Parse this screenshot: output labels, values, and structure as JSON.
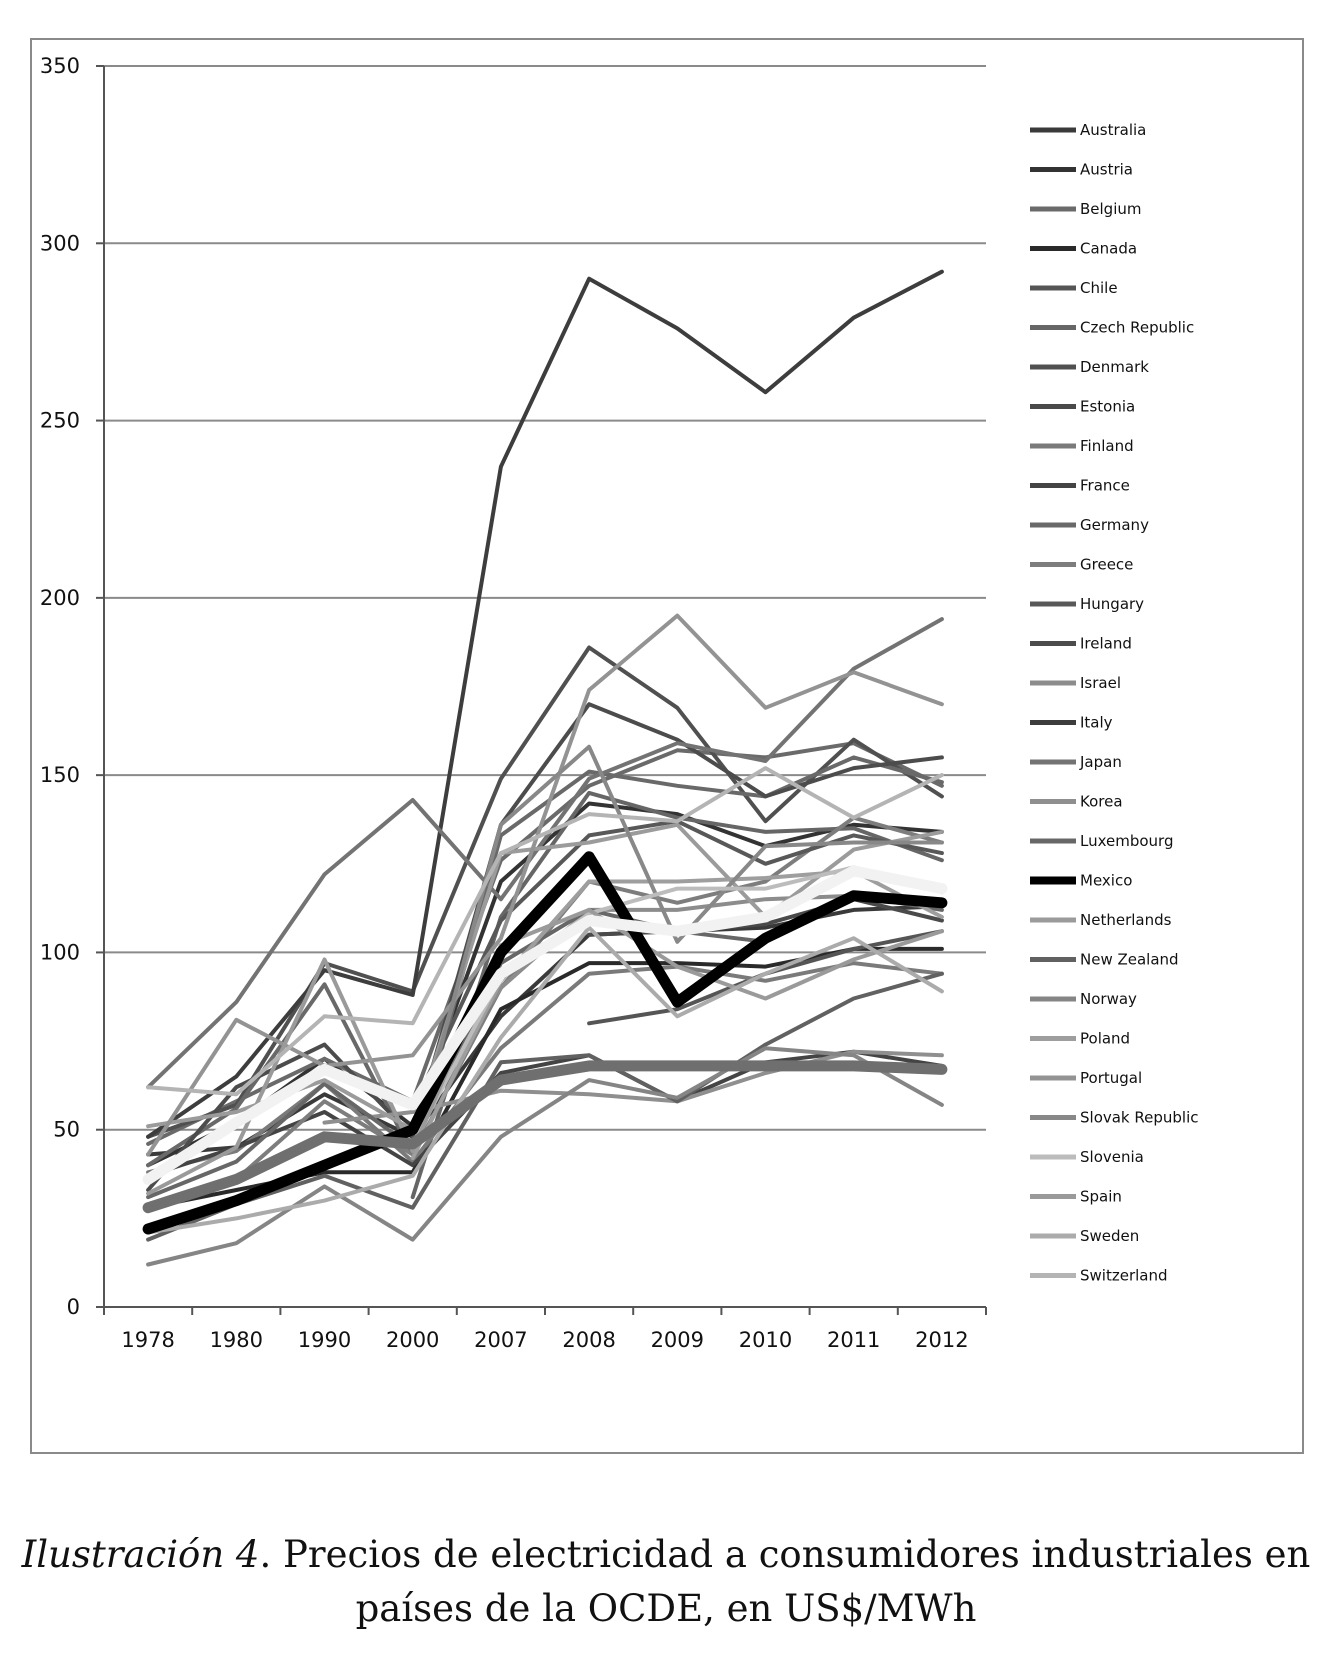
{
  "caption": {
    "label": "Ilustración 4",
    "text": ". Precios de electricidad a consumidores industriales en países de la OCDE, en US$/MWh"
  },
  "chart_data": {
    "type": "line",
    "title": "",
    "xlabel": "",
    "ylabel": "",
    "categories": [
      "1978",
      "1980",
      "1990",
      "2000",
      "2007",
      "2008",
      "2009",
      "2010",
      "2011",
      "2012"
    ],
    "ylim": [
      0,
      350
    ],
    "yticks": [
      0,
      50,
      100,
      150,
      200,
      250,
      300,
      350
    ],
    "grid": "horizontal",
    "legend_position": "right",
    "series": [
      {
        "name": "Australia",
        "color": "#3a3a3a",
        "values": [
          43,
          45,
          60,
          48,
          82,
          105,
          106,
          107,
          112,
          113
        ]
      },
      {
        "name": "Austria",
        "color": "#333333",
        "values": [
          40,
          52,
          70,
          51,
          120,
          142,
          139,
          130,
          136,
          134
        ]
      },
      {
        "name": "Belgium",
        "color": "#6a6a6a",
        "values": [
          46,
          58,
          70,
          58,
          126,
          147,
          157,
          155,
          159,
          147
        ]
      },
      {
        "name": "Canada",
        "color": "#2a2a2a",
        "values": [
          28,
          33,
          38,
          38,
          84,
          97,
          97,
          96,
          101,
          101
        ]
      },
      {
        "name": "Chile",
        "color": "#555555",
        "values": [
          null,
          null,
          null,
          null,
          null,
          80,
          84,
          94,
          101,
          106
        ]
      },
      {
        "name": "Czech Republic",
        "color": "#666666",
        "values": [
          null,
          null,
          null,
          31,
          110,
          145,
          138,
          134,
          135,
          126
        ]
      },
      {
        "name": "Denmark",
        "color": "#505050",
        "values": [
          48,
          57,
          97,
          89,
          149,
          186,
          169,
          137,
          160,
          144
        ]
      },
      {
        "name": "Estonia",
        "color": "#4a4a4a",
        "values": [
          null,
          null,
          null,
          null,
          null,
          105,
          106,
          108,
          115,
          109
        ]
      },
      {
        "name": "Finland",
        "color": "#7a7a7a",
        "values": [
          38,
          44,
          63,
          41,
          73,
          94,
          96,
          92,
          97,
          94
        ]
      },
      {
        "name": "France",
        "color": "#444444",
        "values": [
          37,
          45,
          55,
          40,
          66,
          71,
          58,
          69,
          72,
          68
        ]
      },
      {
        "name": "Germany",
        "color": "#696969",
        "values": [
          40,
          56,
          91,
          43,
          133,
          151,
          147,
          144,
          155,
          148
        ]
      },
      {
        "name": "Greece",
        "color": "#7d7d7d",
        "values": [
          null,
          36,
          58,
          43,
          90,
          120,
          114,
          120,
          138,
          131
        ]
      },
      {
        "name": "Hungary",
        "color": "#585858",
        "values": [
          null,
          null,
          null,
          56,
          109,
          133,
          137,
          125,
          133,
          128
        ]
      },
      {
        "name": "Ireland",
        "color": "#4c4c4c",
        "values": [
          33,
          62,
          74,
          48,
          136,
          170,
          160,
          144,
          152,
          155
        ]
      },
      {
        "name": "Israel",
        "color": "#8c8c8c",
        "values": [
          null,
          null,
          null,
          52,
          90,
          112,
          112,
          115,
          116,
          113
        ]
      },
      {
        "name": "Italy",
        "color": "#3d3d3d",
        "values": [
          48,
          65,
          95,
          88,
          237,
          290,
          276,
          258,
          279,
          292
        ]
      },
      {
        "name": "Japan",
        "color": "#737373",
        "values": [
          62,
          86,
          122,
          143,
          115,
          149,
          159,
          154,
          180,
          194
        ]
      },
      {
        "name": "Korea",
        "color": "#8f8f8f",
        "values": [
          null,
          null,
          52,
          55,
          61,
          60,
          58,
          66,
          72,
          71
        ]
      },
      {
        "name": "Luxembourg",
        "color": "#676767",
        "values": [
          31,
          41,
          63,
          45,
          97,
          112,
          106,
          103,
          116,
          112
        ]
      },
      {
        "name": "Mexico",
        "color": "#000000",
        "bold": true,
        "values": [
          22,
          30,
          40,
          50,
          100,
          127,
          86,
          104,
          116,
          114
        ]
      },
      {
        "name": "Netherlands",
        "color": "#9b9b9b",
        "values": [
          51,
          55,
          64,
          50,
          128,
          131,
          136,
          110,
          129,
          134
        ]
      },
      {
        "name": "New Zealand",
        "color": "#616161",
        "values": [
          19,
          29,
          37,
          28,
          69,
          71,
          58,
          74,
          87,
          94
        ]
      },
      {
        "name": "Norway",
        "color": "#858585",
        "values": [
          12,
          18,
          34,
          19,
          48,
          64,
          59,
          73,
          71,
          57
        ]
      },
      {
        "name": "Poland",
        "color": "#9e9e9e",
        "values": [
          null,
          null,
          null,
          42,
          92,
          120,
          120,
          121,
          123,
          110
        ]
      },
      {
        "name": "Portugal",
        "color": "#939393",
        "values": [
          43,
          81,
          68,
          71,
          104,
          174,
          195,
          169,
          179,
          170
        ]
      },
      {
        "name": "Slovak Republic",
        "color": "#888888",
        "values": [
          null,
          null,
          null,
          44,
          136,
          158,
          103,
          130,
          131,
          131
        ]
      },
      {
        "name": "Slovenia",
        "color": "#bcbcbc",
        "values": [
          null,
          null,
          null,
          46,
          93,
          111,
          118,
          118,
          124,
          117
        ]
      },
      {
        "name": "Spain",
        "color": "#9a9a9a",
        "values": [
          32,
          45,
          98,
          44,
          102,
          112,
          96,
          87,
          98,
          106
        ]
      },
      {
        "name": "Sweden",
        "color": "#ababab",
        "values": [
          21,
          25,
          30,
          37,
          76,
          107,
          82,
          94,
          104,
          89
        ]
      },
      {
        "name": "Switzerland",
        "color": "#b4b4b4",
        "values": [
          62,
          60,
          82,
          80,
          128,
          139,
          137,
          152,
          138,
          150
        ]
      },
      {
        "name": "",
        "color": "#f2f2f2",
        "bold": true,
        "values": [
          36,
          52,
          67,
          57,
          94,
          109,
          106,
          110,
          123,
          118
        ]
      },
      {
        "name": "",
        "color": "#6f6f6f",
        "bold": true,
        "values": [
          28,
          36,
          48,
          46,
          64,
          68,
          68,
          68,
          68,
          67
        ]
      }
    ]
  }
}
